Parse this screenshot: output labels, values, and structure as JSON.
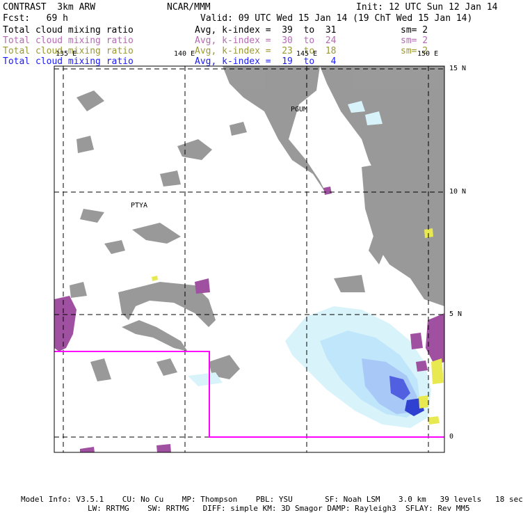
{
  "header": {
    "left_line1": "CONTRAST  3km ARW",
    "center_line1": "NCAR/MMM",
    "right_line1": "Init: 12 UTC Sun 12 Jan 14",
    "left_line2": "Fcst:   69 h",
    "right_line2": "Valid: 09 UTC Wed 15 Jan 14 (19 ChT Wed 15 Jan 14)"
  },
  "legend": [
    {
      "field": "Total cloud mixing ratio",
      "avg": "Avg, k-index =  39  to  31",
      "sm": "sm= 2",
      "color": "#000000"
    },
    {
      "field": "Total cloud mixing ratio",
      "avg": "Avg, k-index =  30  to  24",
      "sm": "sm= 2",
      "color": "#b36bb3"
    },
    {
      "field": "Total cloud mixing ratio",
      "avg": "Avg, k-index =  23  to  18",
      "sm": "sm= 2",
      "color": "#999933"
    },
    {
      "field": "Total cloud mixing ratio",
      "avg": "Avg, k-index =  19  to   4",
      "sm": "",
      "color": "#1a1aff"
    }
  ],
  "map": {
    "lon_labels": [
      "135 E",
      "140 E",
      "145 E",
      "150 E"
    ],
    "lat_labels": [
      "15 N",
      "10 N",
      "5 N",
      "0"
    ],
    "station_labels": [
      "PGUM",
      "PTYA"
    ],
    "colors": {
      "cloud_high": "#888888",
      "cloud_mid": "#a050a0",
      "cloud_low": "#e8e850",
      "cloud_shallow_light": "#d8f4fa",
      "cloud_shallow_mid": "#a8c8f8",
      "cloud_shallow_dark": "#5060e0",
      "box": "#ff00ff"
    }
  },
  "footer": {
    "line1": "Model Info: V3.5.1    CU: No Cu    MP: Thompson    PBL: YSU       SF: Noah LSM    3.0 km   39 levels   18 sec",
    "line2": "LW: RRTMG    SW: RRTMG   DIFF: simple KM: 3D Smagor DAMP: Rayleigh3  SFLAY: Rev MM5"
  }
}
